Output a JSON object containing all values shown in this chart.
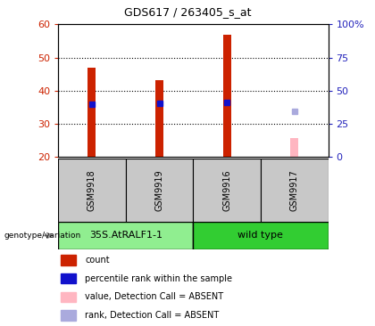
{
  "title": "GDS617 / 263405_s_at",
  "samples": [
    "GSM9918",
    "GSM9919",
    "GSM9916",
    "GSM9917"
  ],
  "groups": [
    {
      "label": "35S.AtRALF1-1",
      "samples": [
        0,
        1
      ],
      "color": "#90EE90"
    },
    {
      "label": "wild type",
      "samples": [
        2,
        3
      ],
      "color": "#32CD32"
    }
  ],
  "count_values": [
    47,
    43,
    57,
    null
  ],
  "count_absent_values": [
    null,
    null,
    null,
    25.5
  ],
  "percentile_values": [
    39.5,
    40.3,
    41.2,
    null
  ],
  "percentile_absent_values": [
    null,
    null,
    null,
    34.0
  ],
  "ylim_left": [
    20,
    60
  ],
  "ylim_right": [
    0,
    100
  ],
  "yticks_left": [
    20,
    30,
    40,
    50,
    60
  ],
  "yticks_right": [
    0,
    25,
    50,
    75,
    100
  ],
  "bar_color": "#CC2200",
  "bar_absent_color": "#FFB6C1",
  "rank_color": "#1111CC",
  "rank_absent_color": "#AAAADD",
  "left_axis_color": "#CC2200",
  "right_axis_color": "#2222BB",
  "grid_color": "#000000",
  "label_area_bg": "#C8C8C8",
  "legend_items": [
    {
      "color": "#CC2200",
      "label": "count"
    },
    {
      "color": "#1111CC",
      "label": "percentile rank within the sample"
    },
    {
      "color": "#FFB6C1",
      "label": "value, Detection Call = ABSENT"
    },
    {
      "color": "#AAAADD",
      "label": "rank, Detection Call = ABSENT"
    }
  ],
  "bar_width": 0.12,
  "marker_size": 4.5
}
